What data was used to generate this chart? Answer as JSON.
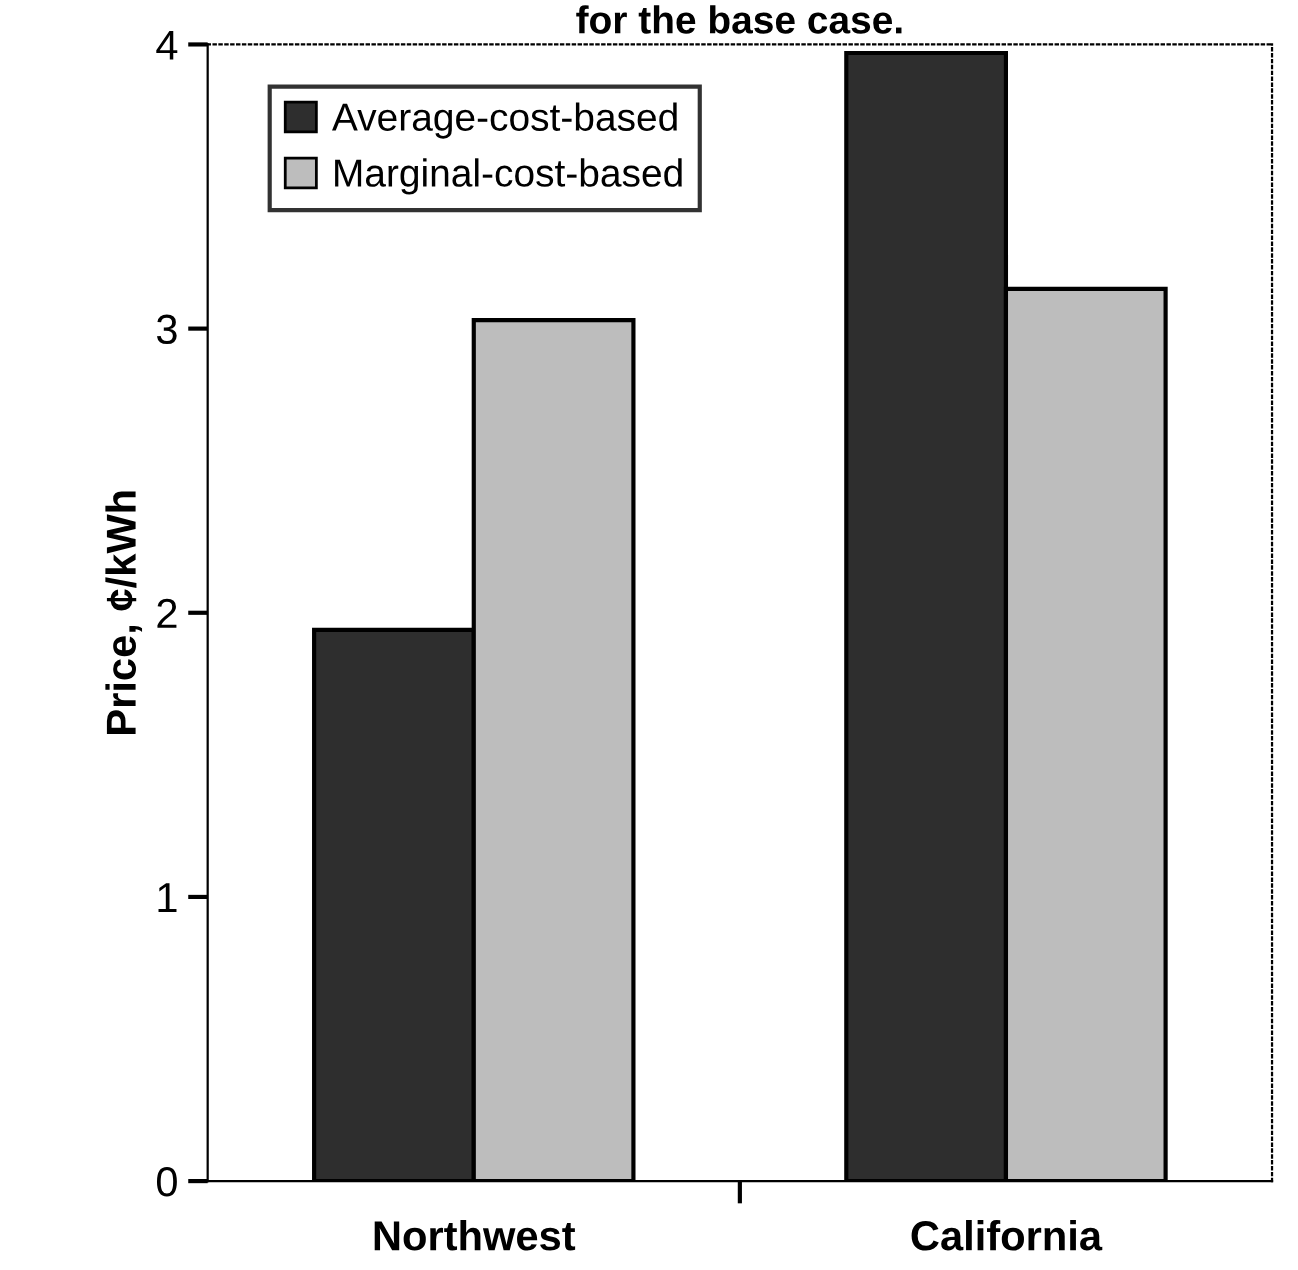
{
  "chart_data": {
    "type": "bar",
    "title": "for the base case.",
    "ylabel": "Price, ¢/kWh",
    "categories": [
      "Northwest",
      "California"
    ],
    "series": [
      {
        "name": "Average-cost-based",
        "color": "#2e2e2e",
        "values": [
          1.94,
          3.97
        ]
      },
      {
        "name": "Marginal-cost-based",
        "color": "#bdbdbd",
        "values": [
          3.03,
          3.14
        ]
      }
    ],
    "ylim": [
      0,
      4
    ],
    "yticks": [
      0,
      1,
      2,
      3,
      4
    ],
    "grid": false,
    "legend": "top left"
  }
}
